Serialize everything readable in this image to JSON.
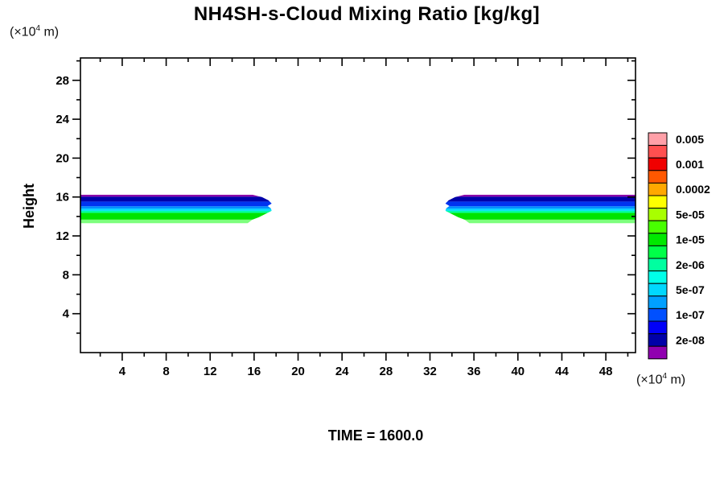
{
  "chart_data": {
    "type": "contour",
    "title": "NH4SH-s-Cloud Mixing Ratio [kg/kg]",
    "ylabel": "Height",
    "time_label": "TIME = 1600.0",
    "axis_unit": {
      "prefix": "(×10",
      "exponent": "4",
      "suffix": " m)"
    },
    "xlim": [
      0.2,
      50.7
    ],
    "ylim": [
      0,
      30.3
    ],
    "x_major_ticks": [
      4,
      8,
      12,
      16,
      20,
      24,
      28,
      32,
      36,
      40,
      44,
      48
    ],
    "x_minor_ticks": [
      2,
      6,
      10,
      14,
      18,
      22,
      26,
      30,
      34,
      38,
      42,
      46,
      50
    ],
    "y_major_ticks": [
      4,
      8,
      12,
      16,
      20,
      24,
      28
    ],
    "y_minor_ticks": [
      2,
      6,
      10,
      14,
      18,
      22,
      26,
      30
    ],
    "grid": false,
    "legend_position": "right",
    "colorbar": {
      "labels_top_to_bottom": [
        "0.005",
        "0.001",
        "0.0002",
        "5e-05",
        "1e-05",
        "2e-06",
        "5e-07",
        "1e-07",
        "2e-08"
      ],
      "colors_top_to_bottom": [
        "#FFA0A8",
        "#FF5050",
        "#F00000",
        "#FF5800",
        "#FFA800",
        "#FFFF00",
        "#A8FF00",
        "#48FF00",
        "#00E800",
        "#00FF48",
        "#00FFA0",
        "#00FFE8",
        "#00D8FF",
        "#00A0FF",
        "#0050FF",
        "#0000F8",
        "#0000A8",
        "#9000B0"
      ]
    },
    "clouds": {
      "bands": [
        {
          "x_start": 0.2,
          "x_end": 17.6,
          "taper_side": "right"
        },
        {
          "x_start": 33.4,
          "x_end": 50.7,
          "taper_side": "left"
        }
      ],
      "layers_top_to_bottom": [
        {
          "color": "#8A00A8",
          "top": 16.24,
          "bottom": 16.03
        },
        {
          "color": "#0000AA",
          "top": 16.03,
          "bottom": 15.53
        },
        {
          "color": "#0033F0",
          "top": 15.53,
          "bottom": 15.04
        },
        {
          "color": "#0090FF",
          "top": 15.04,
          "bottom": 14.79
        },
        {
          "color": "#00DCFF",
          "top": 14.79,
          "bottom": 14.58
        },
        {
          "color": "#00FFA0",
          "top": 14.58,
          "bottom": 14.37
        },
        {
          "color": "#00E400",
          "top": 14.37,
          "bottom": 13.67
        },
        {
          "color": "#7DFF7D",
          "top": 13.67,
          "bottom": 13.3
        }
      ]
    }
  }
}
